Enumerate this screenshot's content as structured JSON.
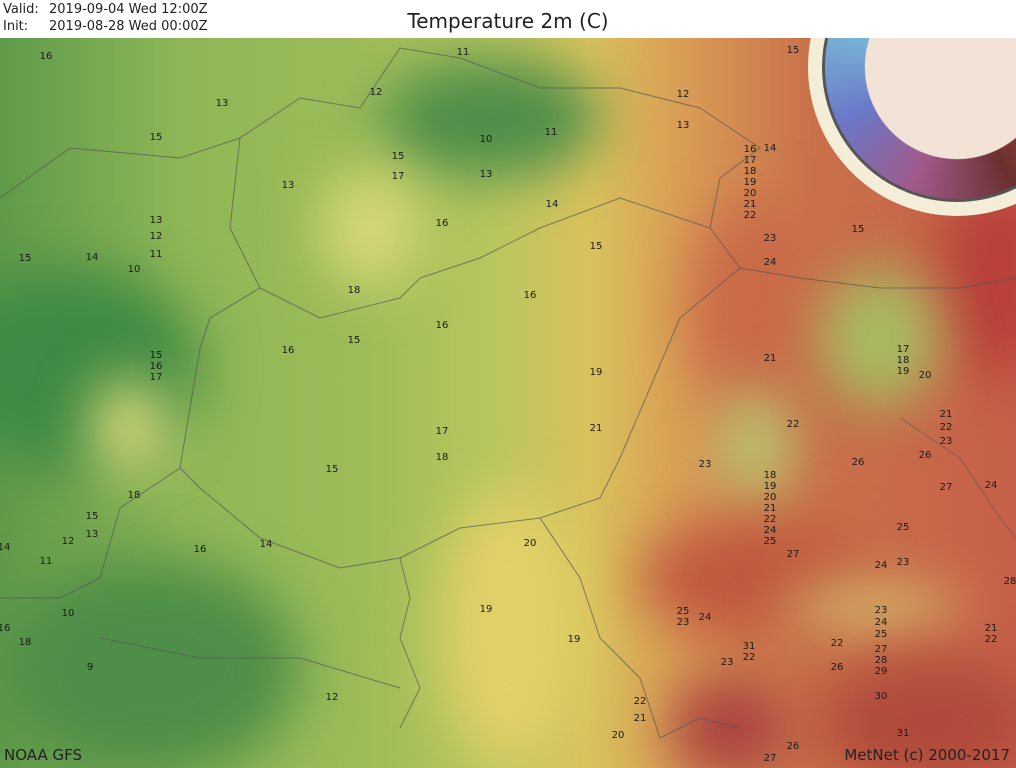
{
  "header": {
    "valid_label": "Valid:",
    "valid_value": "2019-09-04 Wed 12:00Z",
    "init_label": "Init:",
    "init_value": "2019-08-28 Wed 00:00Z",
    "title": "Temperature 2m (C)"
  },
  "footer": {
    "source": "NOAA GFS",
    "copyright": "MetNet (c) 2000-2017"
  },
  "legend": {
    "type": "color-wheel",
    "colors": [
      "#a05a8a",
      "#6a78c8",
      "#7ab8d8",
      "#6fb06a",
      "#d8d86a",
      "#d88a4a",
      "#b04838",
      "#6a3030"
    ]
  },
  "contour_labels": [
    "16",
    "11",
    "15",
    "13",
    "12",
    "12",
    "15",
    "10",
    "11",
    "13",
    "14",
    "15",
    "17",
    "13",
    "13",
    "16",
    "17",
    "18",
    "19",
    "20",
    "21",
    "22",
    "14",
    "13",
    "16",
    "12",
    "23",
    "15",
    "15",
    "14",
    "11",
    "15",
    "10",
    "24",
    "18",
    "16",
    "16",
    "16",
    "15",
    "15",
    "16",
    "17",
    "21",
    "17",
    "18",
    "19",
    "20",
    "19",
    "21",
    "22",
    "23",
    "21",
    "22",
    "17",
    "18",
    "26",
    "26",
    "23",
    "15",
    "18",
    "19",
    "27",
    "24",
    "18",
    "20",
    "21",
    "22",
    "24",
    "25",
    "15",
    "25",
    "13",
    "12",
    "14",
    "20",
    "16",
    "27",
    "14",
    "11",
    "24",
    "23",
    "28",
    "19",
    "25",
    "23",
    "24",
    "10",
    "23",
    "24",
    "25",
    "21",
    "22",
    "16",
    "18",
    "19",
    "22",
    "27",
    "28",
    "29",
    "26",
    "31",
    "22",
    "23",
    "9",
    "12",
    "30",
    "22",
    "21",
    "31",
    "20",
    "26",
    "27"
  ]
}
